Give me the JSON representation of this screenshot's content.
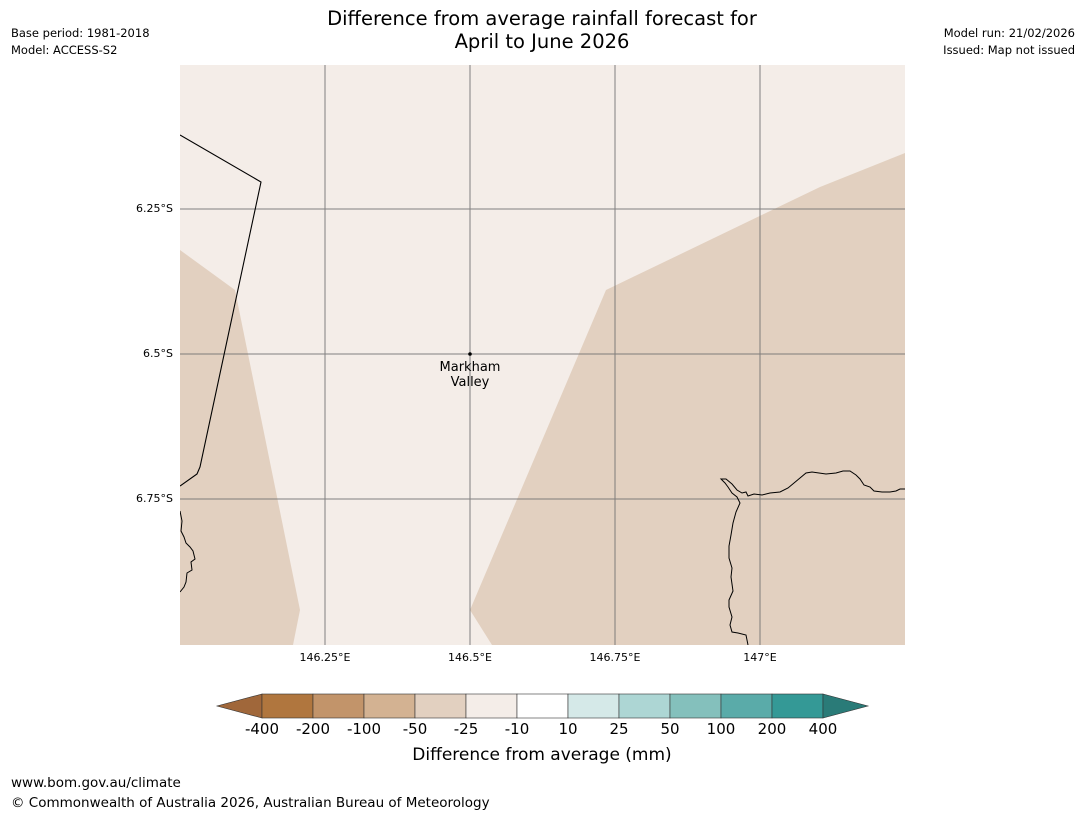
{
  "header": {
    "base_period": "Base period: 1981-2018",
    "model": "Model: ACCESS-S2",
    "model_run": "Model run: 21/02/2026",
    "issued": "Issued: Map not issued",
    "title_line1": "Difference from average rainfall forecast for",
    "title_line2": "April to June 2026"
  },
  "map": {
    "latitude_labels": [
      "6.25°S",
      "6.5°S",
      "6.75°S"
    ],
    "longitude_labels": [
      "146.25°E",
      "146.5°E",
      "146.75°E",
      "147°E"
    ],
    "place": {
      "name_line1": "Markham",
      "name_line2": "Valley"
    },
    "colors": {
      "land_light": "#f4ede8",
      "rain_-25_to_-10": "#f4ede8",
      "rain_-50_to_-25": "#e2d0c0",
      "gridline": "#6e6e6e",
      "coastline": "#000000"
    }
  },
  "legend": {
    "ticks": [
      "-400",
      "-200",
      "-100",
      "-50",
      "-25",
      "-10",
      "10",
      "25",
      "50",
      "100",
      "200",
      "400"
    ],
    "colors": [
      "#a0673a",
      "#b0763e",
      "#c2946a",
      "#d3b292",
      "#e2d0c0",
      "#f4ede8",
      "#ffffff",
      "#d5e9e8",
      "#add6d4",
      "#84c0bc",
      "#5aaba9",
      "#349996",
      "#2a7b78"
    ],
    "label": "Difference from average (mm)"
  },
  "footer": {
    "url": "www.bom.gov.au/climate",
    "copyright": "© Commonwealth of Australia 2026, Australian Bureau of Meteorology"
  }
}
